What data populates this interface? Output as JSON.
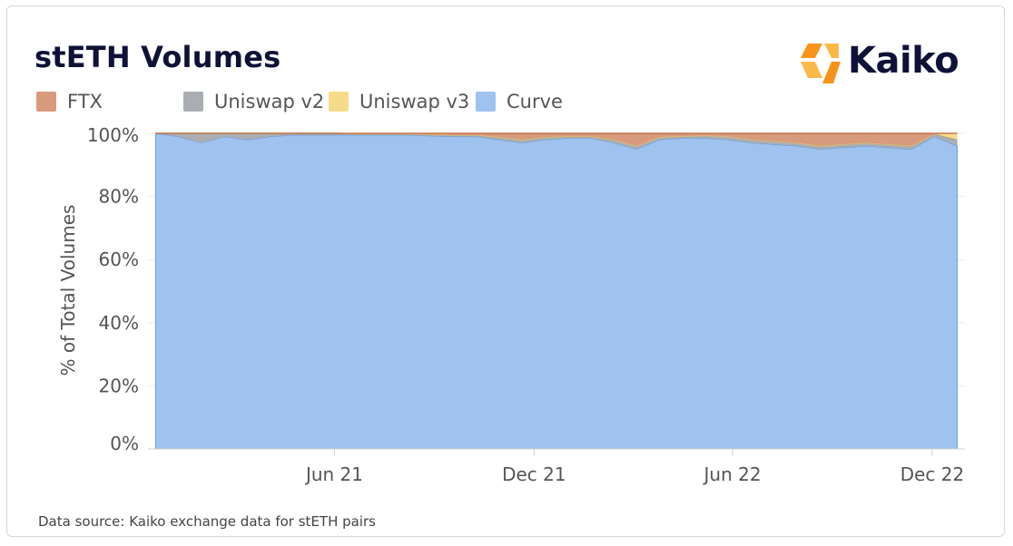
{
  "title": "stETH Volumes",
  "logo": {
    "text": "Kaiko",
    "icon": "kaiko-logo-icon",
    "colors": [
      "#f7931a",
      "#fdb84a"
    ]
  },
  "source_note": "Data source: Kaiko exchange data for stETH pairs",
  "colors": {
    "FTX": "#d89a7d",
    "Uniswap v2": "#aaaeb3",
    "Uniswap v3": "#f6dc8a",
    "Curve": "#9fc2ee",
    "title": "#0f1237"
  },
  "chart_data": {
    "type": "area",
    "stacked": "percent",
    "title": "stETH Volumes",
    "ylabel": "% of Total Volumes",
    "xlabel": "",
    "ylim": [
      0,
      100
    ],
    "yticks": [
      0,
      20,
      40,
      60,
      80,
      100
    ],
    "ytick_labels": [
      "0%",
      "20%",
      "40%",
      "60%",
      "80%",
      "100%"
    ],
    "xticks": [
      {
        "date": "2021-06-01",
        "label": "Jun 21"
      },
      {
        "date": "2021-12-01",
        "label": "Dec 21"
      },
      {
        "date": "2022-06-01",
        "label": "Jun 22"
      },
      {
        "date": "2022-12-01",
        "label": "Dec 22"
      }
    ],
    "xlim": [
      "2020-12-12",
      "2022-12-31"
    ],
    "grid": true,
    "legend": "top-left",
    "x": [
      "2020-12-19",
      "2021-01-09",
      "2021-01-30",
      "2021-02-20",
      "2021-03-13",
      "2021-04-03",
      "2021-04-24",
      "2021-05-15",
      "2021-06-05",
      "2021-06-26",
      "2021-07-17",
      "2021-08-07",
      "2021-08-28",
      "2021-09-18",
      "2021-10-09",
      "2021-10-30",
      "2021-11-20",
      "2021-12-11",
      "2022-01-01",
      "2022-01-22",
      "2022-02-12",
      "2022-03-05",
      "2022-03-26",
      "2022-04-16",
      "2022-05-07",
      "2022-05-28",
      "2022-06-18",
      "2022-07-09",
      "2022-07-30",
      "2022-08-20",
      "2022-09-10",
      "2022-10-01",
      "2022-10-22",
      "2022-11-12",
      "2022-12-03",
      "2022-12-24"
    ],
    "series": [
      {
        "name": "Curve",
        "values": [
          100,
          99,
          97,
          99,
          98,
          99,
          99.5,
          99.5,
          99.5,
          99.5,
          99.5,
          99.5,
          99.2,
          99,
          99,
          98,
          97,
          98,
          98.5,
          98.5,
          97,
          95,
          98,
          98.5,
          98.5,
          98,
          97,
          96.5,
          96,
          95,
          95.5,
          96,
          95.5,
          95,
          99,
          96
        ]
      },
      {
        "name": "Uniswap v2",
        "values": [
          0,
          1,
          3,
          1,
          2,
          1,
          0.5,
          0.5,
          0.5,
          0.3,
          0.3,
          0.3,
          0.5,
          0.5,
          0.5,
          0.8,
          1,
          0.8,
          0.5,
          0.5,
          1,
          1,
          0.8,
          0.6,
          0.8,
          1,
          1,
          1,
          1,
          1,
          1,
          1,
          1,
          1,
          0.8,
          2
        ]
      },
      {
        "name": "Uniswap v3",
        "values": [
          0,
          0,
          0,
          0,
          0,
          0,
          0,
          0,
          0,
          0,
          0,
          0,
          0,
          0,
          0,
          0,
          0,
          0,
          0,
          0,
          0,
          0,
          0,
          0,
          0,
          0,
          0,
          0,
          0,
          0,
          0,
          0,
          0,
          0,
          0,
          2
        ]
      },
      {
        "name": "FTX",
        "values": [
          0,
          0,
          0,
          0,
          0,
          0,
          0,
          0,
          0,
          0.2,
          0.2,
          0.2,
          0.3,
          0.5,
          0.5,
          1.2,
          2,
          1.2,
          1,
          1,
          2,
          4,
          1.2,
          0.9,
          0.7,
          1,
          2,
          2.5,
          3,
          4,
          3.5,
          3,
          3.5,
          4,
          0.2,
          0
        ]
      }
    ]
  },
  "legend_order": [
    "FTX",
    "Uniswap v2",
    "Uniswap v3",
    "Curve"
  ]
}
